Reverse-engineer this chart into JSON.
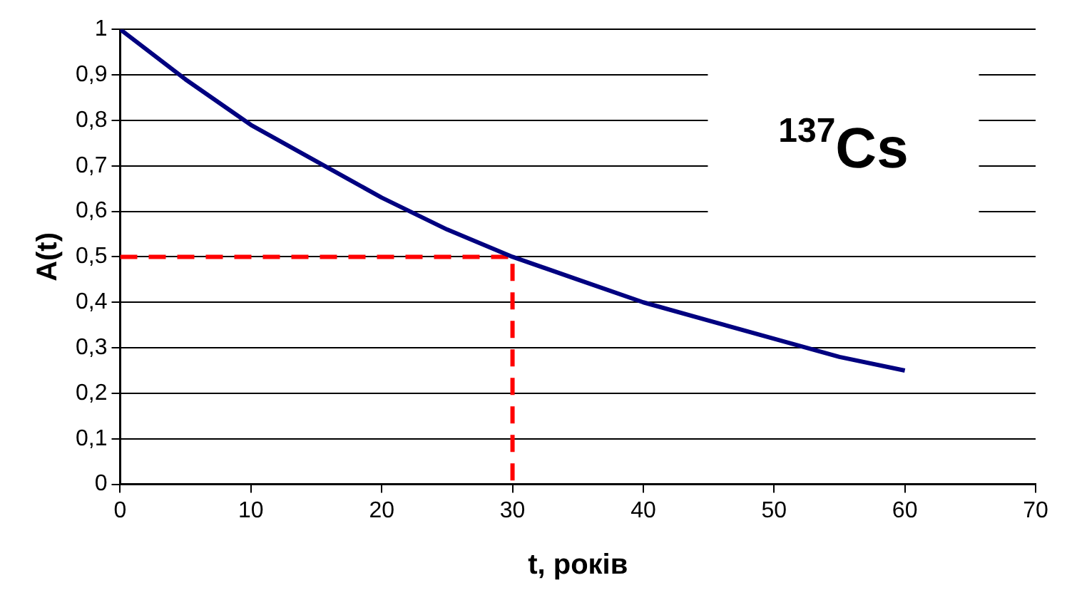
{
  "chart_data": {
    "type": "line",
    "xlabel": "t, років",
    "ylabel": "A(t)",
    "annotations": [
      "$^{137}$Cs"
    ],
    "xlim": [
      0,
      70
    ],
    "xticks": [
      0,
      10,
      20,
      30,
      40,
      50,
      60,
      70
    ],
    "ylim": [
      0,
      1
    ],
    "yticks": [
      0,
      {
        "value": 0.1,
        "label": "0,1"
      },
      {
        "value": 0.2,
        "label": "0,2"
      },
      {
        "value": 0.3,
        "label": "0,3"
      },
      {
        "value": 0.4,
        "label": "0,4"
      },
      {
        "value": 0.5,
        "label": "0,5"
      },
      {
        "value": 0.6,
        "label": "0,6"
      },
      {
        "value": 0.7,
        "label": "0,7"
      },
      {
        "value": 0.8,
        "label": "0,8"
      },
      {
        "value": 0.9,
        "label": "0,9"
      },
      1
    ],
    "grid": "y",
    "legend": false,
    "marker": "none",
    "series": [
      {
        "color": "#000080",
        "x": [
          0,
          5,
          10,
          15,
          20,
          25,
          30,
          35,
          40,
          45,
          50,
          55,
          60
        ],
        "values": [
          1,
          0.89,
          0.79,
          0.71,
          0.63,
          0.56,
          0.5,
          0.45,
          0.4,
          0.36,
          0.32,
          0.28,
          0.25
        ]
      },
      {
        "color": "#ff0000",
        "line_style": "dashed",
        "x": [
          0,
          30,
          30
        ],
        "values": [
          0.5,
          0.5,
          0
        ]
      }
    ]
  }
}
